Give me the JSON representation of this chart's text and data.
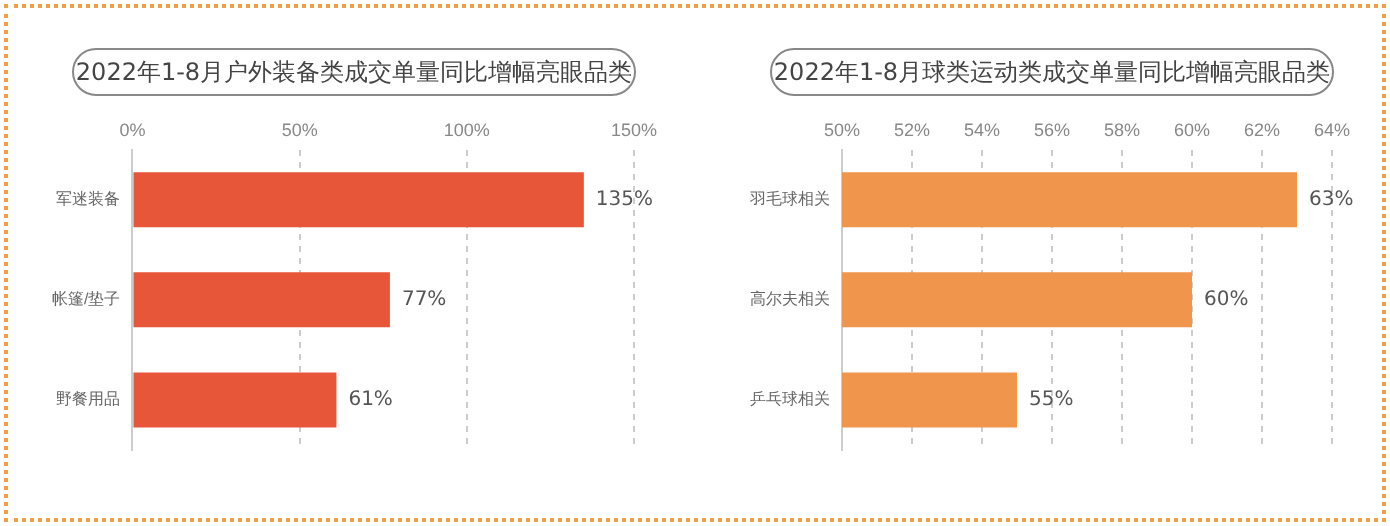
{
  "chart_data": [
    {
      "type": "bar",
      "orientation": "horizontal",
      "title": "2022年1-8月户外装备类成交单量同比增幅亮眼品类",
      "categories": [
        "军迷装备",
        "帐篷/垫子",
        "野餐用品"
      ],
      "values": [
        135,
        77,
        61
      ],
      "value_labels": [
        "135%",
        "77%",
        "61%"
      ],
      "color": "#e8563a",
      "xlim": [
        0,
        150
      ],
      "xticks": [
        {
          "value": 0,
          "label": "0%"
        },
        {
          "value": 50,
          "label": "50%"
        },
        {
          "value": 100,
          "label": "100%"
        },
        {
          "value": 150,
          "label": "150%"
        }
      ],
      "grid": "x",
      "legend": false
    },
    {
      "type": "bar",
      "orientation": "horizontal",
      "title": "2022年1-8月球类运动类成交单量同比增幅亮眼品类",
      "categories": [
        "羽毛球相关",
        "高尔夫相关",
        "乒乓球相关"
      ],
      "values": [
        63,
        60,
        55
      ],
      "value_labels": [
        "63%",
        "60%",
        "55%"
      ],
      "color": "#f0954c",
      "xlim": [
        50,
        64
      ],
      "xticks": [
        {
          "value": 50,
          "label": "50%"
        },
        {
          "value": 52,
          "label": "52%"
        },
        {
          "value": 54,
          "label": "54%"
        },
        {
          "value": 56,
          "label": "56%"
        },
        {
          "value": 58,
          "label": "58%"
        },
        {
          "value": 60,
          "label": "60%"
        },
        {
          "value": 62,
          "label": "62%"
        },
        {
          "value": 64,
          "label": "64%"
        }
      ],
      "grid": "x",
      "legend": false
    }
  ]
}
